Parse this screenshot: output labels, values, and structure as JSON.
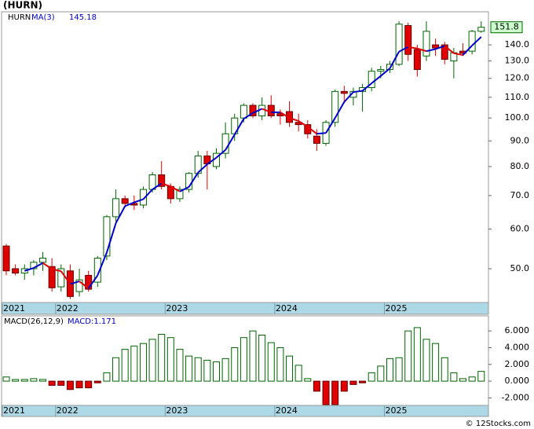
{
  "chart_data": [
    {
      "type": "candlestick",
      "title": "(HURN)",
      "ticker": "HURN",
      "ma_name": "MA(3)",
      "ma_last": 145.18,
      "last_price": 151.8,
      "categories": [
        "2021",
        null,
        null,
        null,
        null,
        null,
        "2022",
        null,
        null,
        null,
        null,
        null,
        null,
        null,
        null,
        null,
        null,
        null,
        "2023",
        null,
        null,
        null,
        null,
        null,
        null,
        null,
        null,
        null,
        null,
        null,
        "2024",
        null,
        null,
        null,
        null,
        null,
        null,
        null,
        null,
        null,
        null,
        null,
        "2025",
        null,
        null,
        null,
        null,
        null,
        null,
        null,
        null,
        null,
        null
      ],
      "open": [
        55.5,
        50,
        49,
        50,
        51.5,
        50.5,
        46,
        49.5,
        45,
        48.5,
        47,
        53,
        63.5,
        69,
        67.5,
        67,
        72,
        77,
        73,
        69,
        72,
        77.5,
        84,
        80,
        85,
        93,
        100,
        106,
        101,
        106,
        102,
        103,
        98,
        97,
        92,
        89,
        98,
        113,
        110,
        113,
        115,
        124,
        125,
        128,
        153,
        137,
        133,
        140,
        140,
        130,
        136,
        136,
        149
      ],
      "high": [
        56,
        51,
        51,
        52,
        54,
        52.5,
        51,
        51,
        50,
        49.5,
        53,
        64,
        72,
        70,
        70,
        73,
        78,
        82,
        74,
        73,
        78,
        86,
        86,
        87,
        98,
        102,
        107,
        107,
        110,
        111,
        104,
        108,
        102,
        99,
        95,
        99,
        114,
        116,
        115,
        117,
        126,
        127,
        130,
        156,
        155,
        140,
        156,
        144,
        142,
        138,
        141,
        150,
        156
      ],
      "low": [
        48.5,
        48.5,
        47.5,
        48.5,
        49.5,
        45,
        45,
        43.5,
        44,
        45,
        46,
        52,
        62,
        66.5,
        65.5,
        66,
        71,
        72,
        67.5,
        68,
        71,
        76,
        72,
        79,
        83,
        90,
        98,
        100,
        99,
        100,
        97,
        96,
        94,
        91,
        86,
        88,
        96,
        107,
        106,
        103,
        113,
        120,
        123,
        127,
        130,
        121,
        130,
        133,
        128,
        120,
        133,
        134,
        148
      ],
      "close": [
        49.5,
        49,
        50,
        51.5,
        52.5,
        45.8,
        50,
        44,
        47.5,
        45.5,
        52.5,
        63.5,
        69,
        67.5,
        67,
        72,
        77,
        73,
        69,
        72,
        77.5,
        84,
        81,
        85,
        93,
        100,
        106,
        101,
        106,
        101,
        101,
        98,
        97,
        93,
        89,
        98,
        113,
        112,
        113,
        115,
        124,
        125,
        128,
        154,
        134,
        125,
        149,
        138,
        131,
        135,
        134.75,
        149,
        151.8
      ],
      "ma": [
        null,
        null,
        49.5,
        50.17,
        51.33,
        49.93,
        49.43,
        46.6,
        47.17,
        45.67,
        48.5,
        53.83,
        61.67,
        66.67,
        67.83,
        68.83,
        72,
        74,
        73,
        71.33,
        72.83,
        77.83,
        80.83,
        83.33,
        86.33,
        92.67,
        99.67,
        102.33,
        104.33,
        102.67,
        102.67,
        100,
        98.67,
        96,
        93,
        93.33,
        100,
        107.67,
        112.67,
        113.33,
        117.33,
        121.33,
        125.67,
        135.67,
        138.67,
        137.67,
        136,
        137.33,
        139.33,
        134.67,
        133.58,
        139.58,
        145.18
      ],
      "up_color": "#006400",
      "down_color": "#e00000",
      "ma_up_color": "#0000cc",
      "ma_down_color": "#e00000",
      "log_scale": true,
      "ylim": [
        42.8,
        163
      ],
      "yticks": [
        {
          "value": 50,
          "label": "50.0"
        },
        {
          "value": 60,
          "label": "60.0"
        },
        {
          "value": 70,
          "label": "70.0"
        },
        {
          "value": 80,
          "label": "80.0"
        },
        {
          "value": 90,
          "label": "90.0"
        },
        {
          "value": 100,
          "label": "100.0"
        },
        {
          "value": 110,
          "label": "110.0"
        },
        {
          "value": 120,
          "label": "120.0"
        },
        {
          "value": 130,
          "label": "130.0"
        },
        {
          "value": 140,
          "label": "140.0"
        }
      ]
    },
    {
      "type": "bar",
      "title": "MACD(26,12,9)",
      "value_text": "MACD:1.171",
      "categories": [
        "2021",
        null,
        null,
        null,
        null,
        null,
        "2022",
        null,
        null,
        null,
        null,
        null,
        null,
        null,
        null,
        null,
        null,
        null,
        "2023",
        null,
        null,
        null,
        null,
        null,
        null,
        null,
        null,
        null,
        null,
        null,
        "2024",
        null,
        null,
        null,
        null,
        null,
        null,
        null,
        null,
        null,
        null,
        null,
        "2025",
        null,
        null,
        null,
        null,
        null,
        null,
        null,
        null,
        null,
        null
      ],
      "values": [
        0.5,
        0.2,
        0.2,
        0.3,
        0.2,
        -0.5,
        -0.5,
        -1.0,
        -0.8,
        -0.8,
        -0.2,
        1.0,
        2.8,
        3.8,
        4.2,
        4.5,
        5.0,
        5.6,
        5.2,
        3.8,
        3.0,
        2.8,
        2.5,
        2.3,
        2.7,
        4.0,
        5.2,
        6.0,
        5.5,
        4.6,
        4.0,
        3.0,
        1.9,
        0.3,
        -1.2,
        -2.8,
        -2.8,
        -1.2,
        -0.4,
        -0.2,
        1.0,
        1.8,
        2.7,
        2.8,
        6.0,
        6.4,
        5.0,
        4.5,
        2.8,
        1.0,
        0.3,
        0.5,
        1.171
      ],
      "up_color": "#006400",
      "down_color": "#e00000",
      "ylim": [
        -2.9,
        7.8
      ],
      "yticks": [
        {
          "value": 6,
          "label": "6.000"
        },
        {
          "value": 4,
          "label": "4.000"
        },
        {
          "value": 2,
          "label": "2.000"
        },
        {
          "value": 0,
          "label": "0.000"
        },
        {
          "value": -2,
          "label": "-2.000"
        }
      ]
    }
  ],
  "footer": "© 12Stocks.com"
}
